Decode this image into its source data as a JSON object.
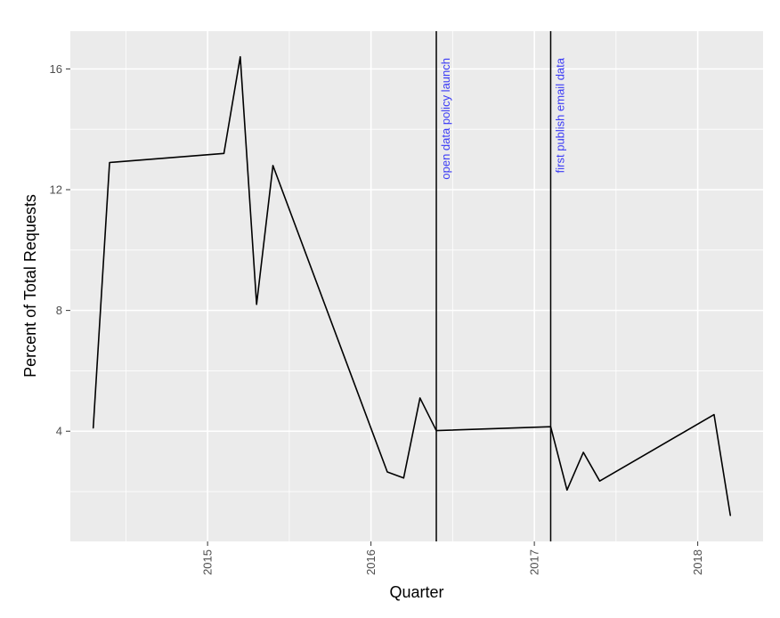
{
  "chart_data": {
    "type": "line",
    "title": "",
    "xlabel": "Quarter",
    "ylabel": "Percent of Total Requests",
    "xlim": [
      2014.16,
      2018.4
    ],
    "ylim": [
      0.35,
      17.25
    ],
    "x_ticks": [
      2015,
      2016,
      2017,
      2018
    ],
    "x_tick_labels": [
      "2015",
      "2016",
      "2017",
      "2018"
    ],
    "y_ticks": [
      4,
      8,
      12,
      16
    ],
    "y_tick_labels": [
      "4",
      "8",
      "12",
      "16"
    ],
    "grid": true,
    "background": "#ebebeb",
    "line_color": "#000000",
    "annotation_color": "#3b3bf5",
    "series": [
      {
        "x": [
          2014.3,
          2014.4,
          2015.1,
          2015.2,
          2015.3,
          2015.4,
          2016.1,
          2016.2,
          2016.3,
          2016.4,
          2017.1,
          2017.2,
          2017.3,
          2017.4,
          2018.1,
          2018.2
        ],
        "values": [
          4.1,
          12.9,
          13.2,
          16.4,
          8.2,
          12.8,
          2.65,
          2.45,
          5.1,
          4.02,
          4.15,
          2.05,
          3.3,
          2.35,
          4.55,
          1.2
        ]
      }
    ],
    "vlines": [
      {
        "x": 2016.4,
        "label": "open data policy launch"
      },
      {
        "x": 2017.1,
        "label": "first publish email data"
      }
    ]
  }
}
